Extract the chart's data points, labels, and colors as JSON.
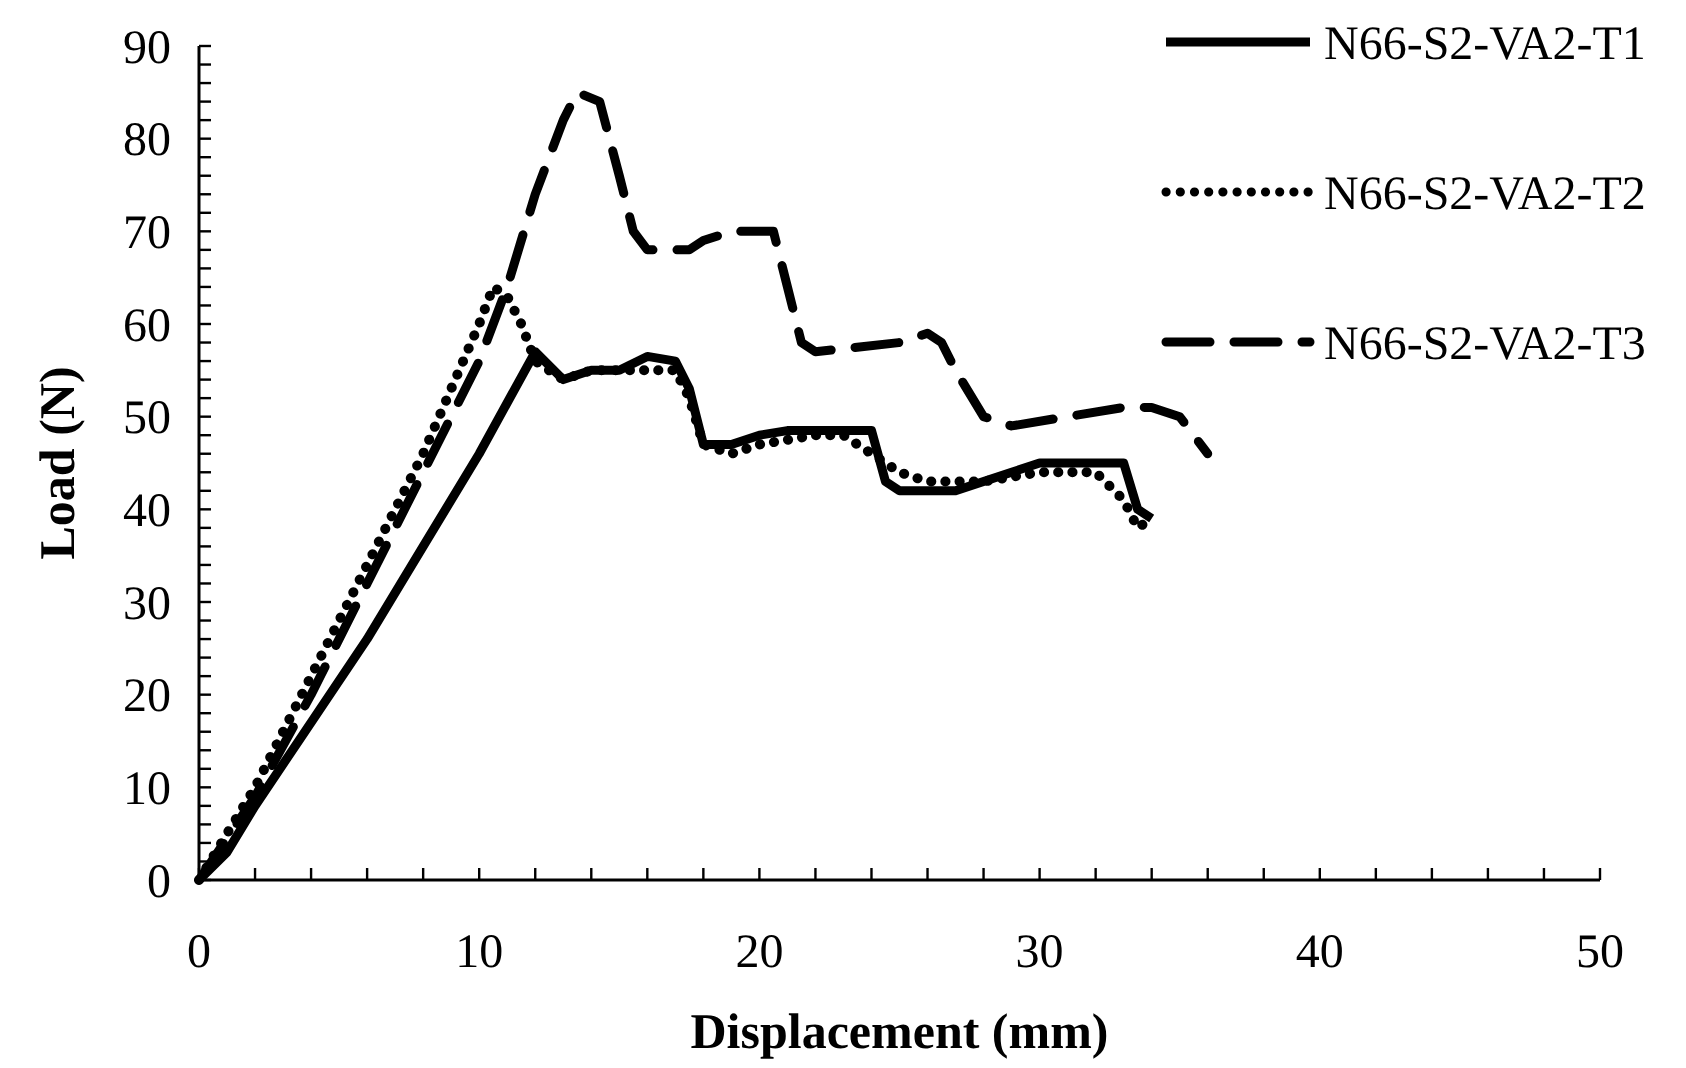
{
  "chart_data": {
    "type": "line",
    "xlabel": "Displacement (mm)",
    "ylabel": "Load (N)",
    "xlim": [
      0,
      50
    ],
    "ylim": [
      0,
      90
    ],
    "xticks": [
      0,
      {
        "value": 2,
        "label": null
      },
      {
        "value": 4,
        "label": null
      },
      {
        "value": 6,
        "label": null
      },
      {
        "value": 8,
        "label": null
      },
      10,
      {
        "value": 12,
        "label": null
      },
      {
        "value": 14,
        "label": null
      },
      {
        "value": 16,
        "label": null
      },
      {
        "value": 18,
        "label": null
      },
      20,
      {
        "value": 22,
        "label": null
      },
      {
        "value": 24,
        "label": null
      },
      {
        "value": 26,
        "label": null
      },
      {
        "value": 28,
        "label": null
      },
      30,
      {
        "value": 32,
        "label": null
      },
      {
        "value": 34,
        "label": null
      },
      {
        "value": 36,
        "label": null
      },
      {
        "value": 38,
        "label": null
      },
      40,
      {
        "value": 42,
        "label": null
      },
      {
        "value": 44,
        "label": null
      },
      {
        "value": 46,
        "label": null
      },
      {
        "value": 48,
        "label": null
      },
      50
    ],
    "yticks": [
      0,
      {
        "value": 2,
        "label": null
      },
      {
        "value": 4,
        "label": null
      },
      {
        "value": 6,
        "label": null
      },
      {
        "value": 8,
        "label": null
      },
      10,
      {
        "value": 12,
        "label": null
      },
      {
        "value": 14,
        "label": null
      },
      {
        "value": 16,
        "label": null
      },
      {
        "value": 18,
        "label": null
      },
      20,
      {
        "value": 22,
        "label": null
      },
      {
        "value": 24,
        "label": null
      },
      {
        "value": 26,
        "label": null
      },
      {
        "value": 28,
        "label": null
      },
      30,
      {
        "value": 32,
        "label": null
      },
      {
        "value": 34,
        "label": null
      },
      {
        "value": 36,
        "label": null
      },
      {
        "value": 38,
        "label": null
      },
      40,
      {
        "value": 42,
        "label": null
      },
      {
        "value": 44,
        "label": null
      },
      {
        "value": 46,
        "label": null
      },
      {
        "value": 48,
        "label": null
      },
      50,
      {
        "value": 52,
        "label": null
      },
      {
        "value": 54,
        "label": null
      },
      {
        "value": 56,
        "label": null
      },
      {
        "value": 58,
        "label": null
      },
      60,
      {
        "value": 62,
        "label": null
      },
      {
        "value": 64,
        "label": null
      },
      {
        "value": 66,
        "label": null
      },
      {
        "value": 68,
        "label": null
      },
      70,
      {
        "value": 72,
        "label": null
      },
      {
        "value": 74,
        "label": null
      },
      {
        "value": 76,
        "label": null
      },
      {
        "value": 78,
        "label": null
      },
      80,
      {
        "value": 82,
        "label": null
      },
      {
        "value": 84,
        "label": null
      },
      {
        "value": 86,
        "label": null
      },
      {
        "value": 88,
        "label": null
      },
      90
    ],
    "grid": false,
    "legend": "top right",
    "marker": "none",
    "series": [
      {
        "name": "N66-S2-VA2-T1",
        "color": "#000000",
        "line_style": "solid",
        "x": [
          0,
          1,
          2,
          4,
          6,
          8,
          10,
          12,
          13,
          14,
          15,
          16,
          17,
          17.5,
          18,
          19,
          20,
          21,
          24,
          24.5,
          25,
          27,
          28,
          29,
          30,
          33,
          33.5,
          34
        ],
        "values": [
          0,
          3,
          8,
          17,
          26,
          36,
          46,
          57,
          54,
          55,
          55,
          56.5,
          56,
          53,
          47,
          47,
          48,
          48.5,
          48.5,
          43,
          42,
          42,
          43,
          44,
          45,
          45,
          40,
          39
        ]
      },
      {
        "name": "N66-S2-VA2-T2",
        "color": "#000000",
        "line_style": "dotted",
        "x": [
          0,
          2,
          4,
          6,
          8,
          10,
          10.5,
          11,
          11.5,
          12,
          13,
          14,
          16,
          17,
          17.5,
          18,
          19,
          20,
          22,
          23,
          24,
          25,
          26,
          28,
          30,
          32,
          33,
          33.5,
          34
        ],
        "values": [
          0,
          10,
          22,
          34,
          46,
          60,
          64,
          63,
          60,
          56,
          54,
          55,
          55,
          55,
          52,
          47,
          46,
          47,
          48,
          48,
          46,
          44,
          43,
          43,
          44,
          44,
          41,
          38,
          39
        ]
      },
      {
        "name": "N66-S2-VA2-T3",
        "color": "#000000",
        "line_style": "dashed",
        "x": [
          0,
          2,
          4,
          6,
          8,
          10,
          11,
          12,
          13,
          13.5,
          14.3,
          15,
          15.5,
          16,
          17.5,
          18,
          19,
          20.5,
          21,
          21.5,
          22,
          25,
          26,
          26.5,
          27,
          28,
          29,
          31,
          33,
          34,
          35,
          35.5,
          36
        ],
        "values": [
          0,
          9,
          20,
          32,
          44,
          56,
          64,
          74,
          82,
          85,
          84,
          76,
          70,
          68,
          68,
          69,
          70,
          70,
          64,
          58,
          57,
          58,
          59,
          58,
          55,
          50,
          49,
          50,
          51,
          51,
          50,
          48,
          46
        ]
      }
    ]
  }
}
